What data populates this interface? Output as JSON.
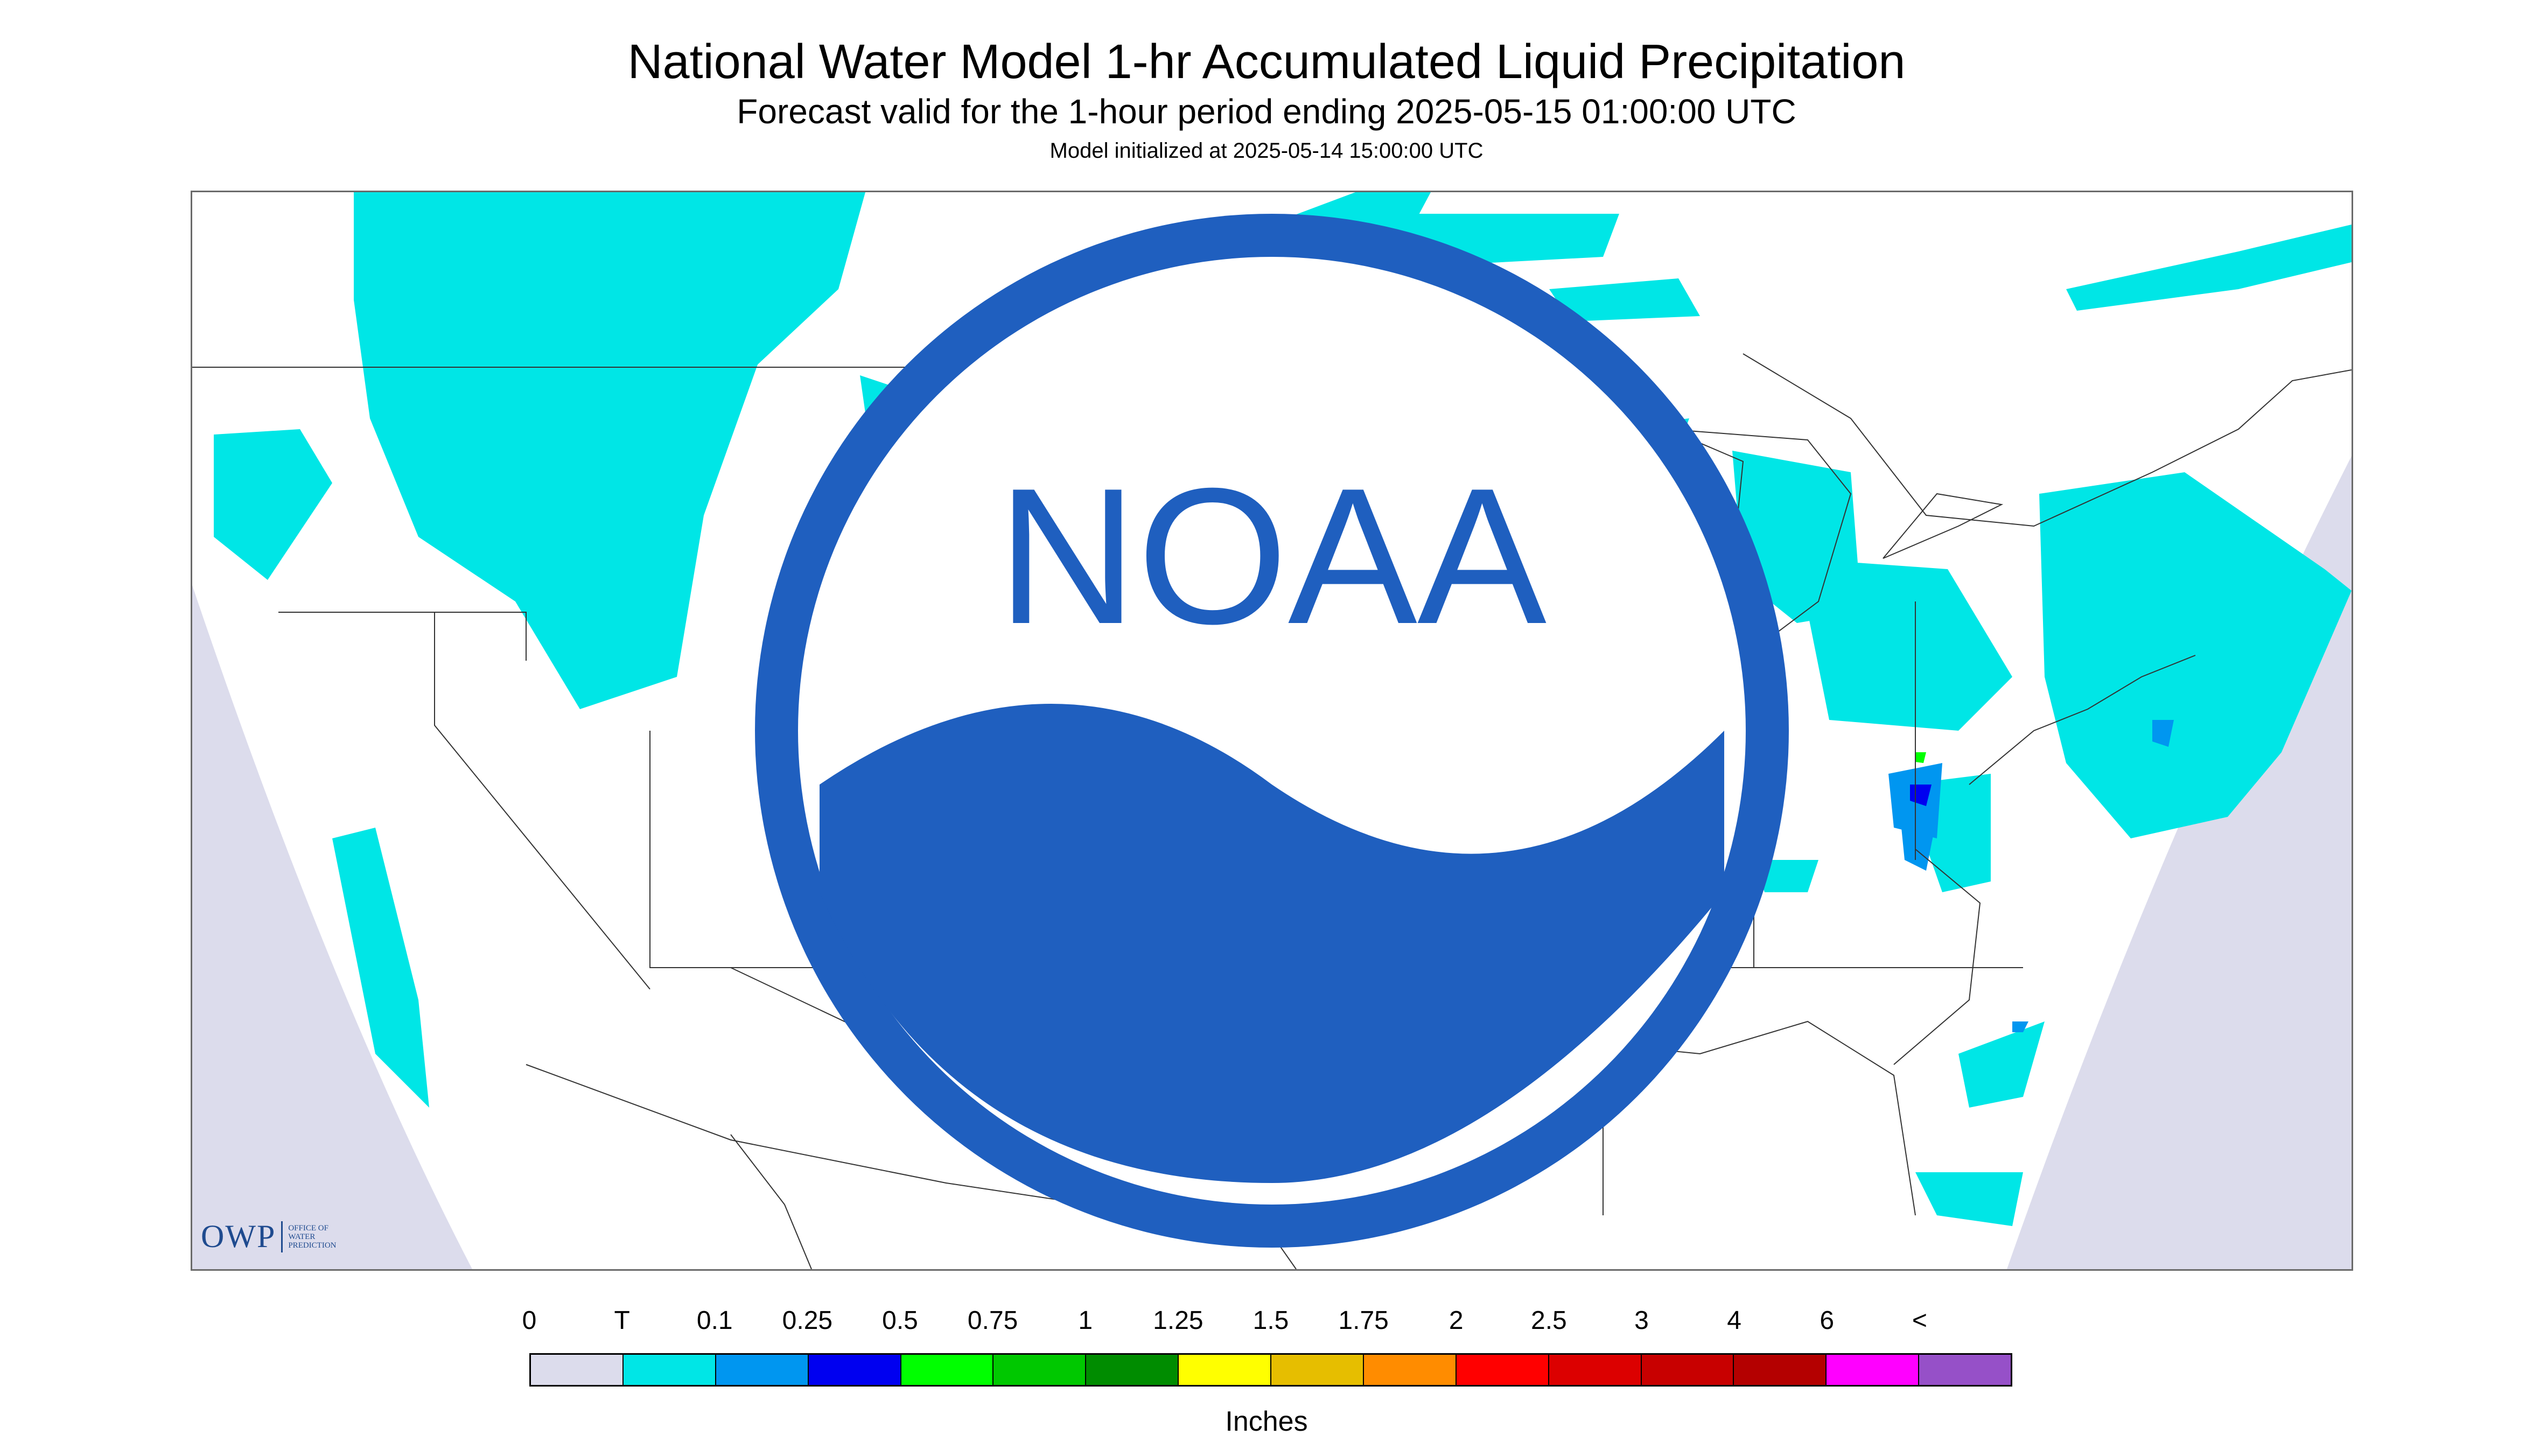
{
  "header": {
    "title": "National Water Model 1-hr Accumulated Liquid Precipitation",
    "subtitle": "Forecast valid for the 1-hour period ending 2025-05-15 01:00:00 UTC",
    "init_line": "Model initialized at 2025-05-14 15:00:00 UTC"
  },
  "logos": {
    "owp_mark": "OWP",
    "owp_text": "OFFICE OF WATER PREDICTION",
    "noaa_mark": "NOAA"
  },
  "colors": {
    "background_domain": "#ffffff",
    "outside_domain": "#dcdcec",
    "trace": "#00e6e6",
    "boundaries": "#333333"
  },
  "legend": {
    "labels": [
      "0",
      "T",
      "0.1",
      "0.25",
      "0.5",
      "0.75",
      "1",
      "1.25",
      "1.5",
      "1.75",
      "2",
      "2.5",
      "3",
      "4",
      "6",
      "<"
    ],
    "swatches": [
      "#dcdcec",
      "#00e6e6",
      "#0096f0",
      "#0000f0",
      "#00ff00",
      "#00c800",
      "#008c00",
      "#ffff00",
      "#e6be00",
      "#ff8c00",
      "#ff0000",
      "#dc0000",
      "#c80000",
      "#b40000",
      "#ff00ff",
      "#9650c8"
    ],
    "units": "Inches"
  }
}
